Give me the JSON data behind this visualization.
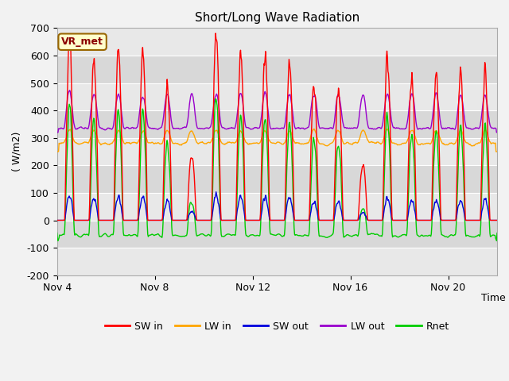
{
  "title": "Short/Long Wave Radiation",
  "ylabel": "( W/m2)",
  "xlabel": "Time",
  "ylim": [
    -200,
    700
  ],
  "yticks": [
    -200,
    -100,
    0,
    100,
    200,
    300,
    400,
    500,
    600,
    700
  ],
  "xtick_labels": [
    "Nov 4",
    "Nov 8",
    "Nov 12",
    "Nov 16",
    "Nov 20"
  ],
  "annotation": "VR_met",
  "legend": [
    "SW in",
    "LW in",
    "SW out",
    "LW out",
    "Rnet"
  ],
  "colors": {
    "SW_in": "#ff0000",
    "LW_in": "#ffa500",
    "SW_out": "#0000dd",
    "LW_out": "#9900cc",
    "Rnet": "#00cc00"
  },
  "n_days": 18,
  "figsize": [
    6.4,
    4.8
  ],
  "dpi": 100
}
